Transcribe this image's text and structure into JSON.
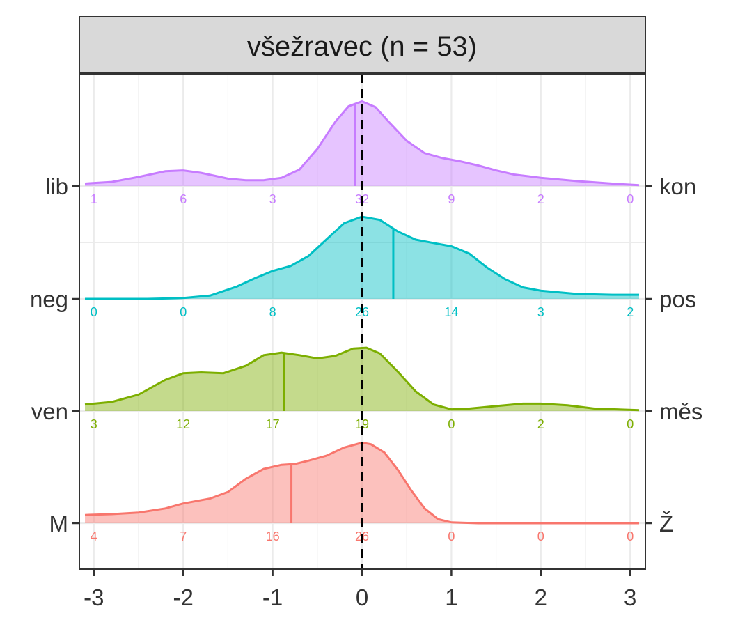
{
  "chart_data": {
    "type": "ridgeline",
    "facet_title": "všežravec (n = 53)",
    "x_ticks": [
      "-3",
      "-2",
      "-1",
      "0",
      "1",
      "2",
      "3"
    ],
    "xlim": [
      -3.1,
      3.1
    ],
    "reference_line_x": 0,
    "count_positions": [
      -3,
      -2,
      -1,
      0,
      1,
      2,
      3
    ],
    "rows": [
      {
        "left_label": "M",
        "right_label": "Ž",
        "color": "#F8766D",
        "counts": [
          4,
          7,
          16,
          26,
          0,
          0,
          0
        ],
        "mean": -0.79,
        "density": [
          [
            -3.1,
            0.1
          ],
          [
            -2.8,
            0.11
          ],
          [
            -2.5,
            0.13
          ],
          [
            -2.2,
            0.18
          ],
          [
            -2.0,
            0.24
          ],
          [
            -1.7,
            0.3
          ],
          [
            -1.5,
            0.38
          ],
          [
            -1.3,
            0.54
          ],
          [
            -1.1,
            0.66
          ],
          [
            -0.9,
            0.71
          ],
          [
            -0.75,
            0.72
          ],
          [
            -0.6,
            0.76
          ],
          [
            -0.4,
            0.82
          ],
          [
            -0.2,
            0.92
          ],
          [
            0.0,
            0.98
          ],
          [
            0.1,
            0.96
          ],
          [
            0.25,
            0.86
          ],
          [
            0.4,
            0.65
          ],
          [
            0.55,
            0.4
          ],
          [
            0.7,
            0.18
          ],
          [
            0.85,
            0.05
          ],
          [
            1.0,
            0.01
          ],
          [
            1.3,
            0.0
          ],
          [
            3.1,
            0.0
          ]
        ]
      },
      {
        "left_label": "ven",
        "right_label": "měs",
        "color": "#7CAE00",
        "counts": [
          3,
          12,
          17,
          19,
          0,
          2,
          0
        ],
        "mean": -0.87,
        "density": [
          [
            -3.1,
            0.08
          ],
          [
            -2.8,
            0.11
          ],
          [
            -2.5,
            0.2
          ],
          [
            -2.2,
            0.38
          ],
          [
            -2.0,
            0.46
          ],
          [
            -1.8,
            0.47
          ],
          [
            -1.55,
            0.46
          ],
          [
            -1.3,
            0.55
          ],
          [
            -1.1,
            0.68
          ],
          [
            -0.9,
            0.71
          ],
          [
            -0.7,
            0.68
          ],
          [
            -0.5,
            0.64
          ],
          [
            -0.3,
            0.67
          ],
          [
            -0.1,
            0.76
          ],
          [
            0.05,
            0.77
          ],
          [
            0.2,
            0.7
          ],
          [
            0.4,
            0.48
          ],
          [
            0.6,
            0.24
          ],
          [
            0.8,
            0.08
          ],
          [
            1.0,
            0.02
          ],
          [
            1.2,
            0.03
          ],
          [
            1.5,
            0.06
          ],
          [
            1.8,
            0.09
          ],
          [
            2.0,
            0.09
          ],
          [
            2.3,
            0.07
          ],
          [
            2.6,
            0.03
          ],
          [
            3.1,
            0.01
          ]
        ]
      },
      {
        "left_label": "neg",
        "right_label": "pos",
        "color": "#00BFC4",
        "counts": [
          0,
          0,
          8,
          26,
          14,
          3,
          2
        ],
        "mean": 0.35,
        "density": [
          [
            -3.1,
            0.0
          ],
          [
            -2.4,
            0.0
          ],
          [
            -2.0,
            0.01
          ],
          [
            -1.7,
            0.04
          ],
          [
            -1.4,
            0.15
          ],
          [
            -1.2,
            0.25
          ],
          [
            -1.0,
            0.34
          ],
          [
            -0.8,
            0.4
          ],
          [
            -0.6,
            0.52
          ],
          [
            -0.4,
            0.72
          ],
          [
            -0.2,
            0.92
          ],
          [
            0.0,
            1.0
          ],
          [
            0.2,
            0.96
          ],
          [
            0.4,
            0.82
          ],
          [
            0.6,
            0.72
          ],
          [
            0.8,
            0.68
          ],
          [
            1.0,
            0.64
          ],
          [
            1.2,
            0.55
          ],
          [
            1.4,
            0.38
          ],
          [
            1.6,
            0.24
          ],
          [
            1.8,
            0.14
          ],
          [
            2.0,
            0.1
          ],
          [
            2.4,
            0.06
          ],
          [
            2.8,
            0.05
          ],
          [
            3.1,
            0.05
          ]
        ]
      },
      {
        "left_label": "lib",
        "right_label": "kon",
        "color": "#C77CFF",
        "counts": [
          1,
          6,
          3,
          32,
          9,
          2,
          0
        ],
        "mean": -0.08,
        "density": [
          [
            -3.1,
            0.03
          ],
          [
            -2.8,
            0.05
          ],
          [
            -2.5,
            0.11
          ],
          [
            -2.2,
            0.18
          ],
          [
            -2.0,
            0.19
          ],
          [
            -1.8,
            0.16
          ],
          [
            -1.5,
            0.09
          ],
          [
            -1.3,
            0.07
          ],
          [
            -1.1,
            0.07
          ],
          [
            -0.9,
            0.1
          ],
          [
            -0.7,
            0.2
          ],
          [
            -0.5,
            0.45
          ],
          [
            -0.3,
            0.78
          ],
          [
            -0.15,
            0.97
          ],
          [
            0.0,
            1.03
          ],
          [
            0.15,
            0.96
          ],
          [
            0.3,
            0.78
          ],
          [
            0.5,
            0.55
          ],
          [
            0.7,
            0.4
          ],
          [
            0.9,
            0.34
          ],
          [
            1.1,
            0.3
          ],
          [
            1.3,
            0.25
          ],
          [
            1.5,
            0.19
          ],
          [
            1.7,
            0.14
          ],
          [
            2.0,
            0.1
          ],
          [
            2.4,
            0.06
          ],
          [
            2.8,
            0.03
          ],
          [
            3.1,
            0.01
          ]
        ]
      }
    ]
  }
}
